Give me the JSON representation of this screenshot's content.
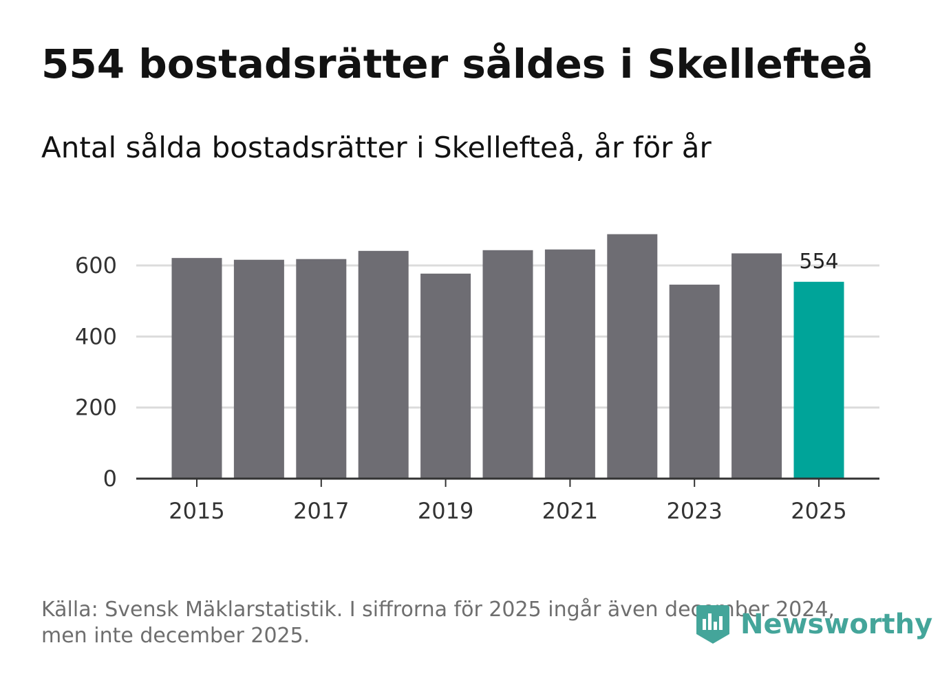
{
  "title": "554 bostadsrätter såldes i Skellefteå",
  "subtitle": "Antal sålda bostadsrätter i Skellefteå, år för år",
  "source": "Källa: Svensk Mäklarstatistik. I siffrorna för 2025 ingår även december 2024, men inte december 2025.",
  "logo": {
    "text": "Newsworthy",
    "icon": "newsworthy-logo-icon",
    "color": "#44a59a"
  },
  "colors": {
    "bar": "#6e6d73",
    "highlight": "#00a499",
    "grid": "#dcdcdc",
    "axis": "#333333"
  },
  "chart_data": {
    "type": "bar",
    "title": "Antal sålda bostadsrätter i Skellefteå, år för år",
    "xlabel": "",
    "ylabel": "",
    "categories": [
      "2015",
      "2016",
      "2017",
      "2018",
      "2019",
      "2020",
      "2021",
      "2022",
      "2023",
      "2024",
      "2025"
    ],
    "values": [
      621,
      616,
      618,
      641,
      577,
      643,
      645,
      688,
      546,
      634,
      554
    ],
    "highlight_index": 10,
    "data_labels": [
      {
        "index": 10,
        "text": "554"
      }
    ],
    "ylim": [
      0,
      700
    ],
    "yticks": [
      0,
      200,
      400,
      600
    ],
    "ytick_labels": [
      "0",
      "200",
      "400",
      "600"
    ],
    "xtick_labels": [
      "2015",
      "2017",
      "2019",
      "2021",
      "2023",
      "2025"
    ],
    "grid": true,
    "legend": "none"
  }
}
